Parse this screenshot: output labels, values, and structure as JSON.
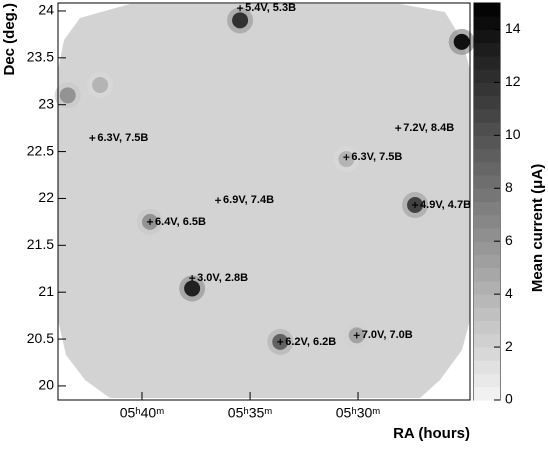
{
  "chart_data": {
    "type": "skymap",
    "xlabel": "RA (hours)",
    "ylabel": "Dec (deg.)",
    "colorbar_label": "Mean current (μA)",
    "xlim": [
      5.7315,
      5.4136
    ],
    "ylim": [
      19.85,
      24.085
    ],
    "xticks": [
      {
        "value": 5.6667,
        "label": "05ʰ40ᵐ"
      },
      {
        "value": 5.5833,
        "label": "05ʰ35ᵐ"
      },
      {
        "value": 5.5,
        "label": "05ʰ30ᵐ"
      }
    ],
    "yticks": [
      20,
      20.5,
      21,
      21.5,
      22,
      22.5,
      23,
      23.5,
      24
    ],
    "clim": [
      0,
      15
    ],
    "cticks": [
      0,
      2,
      4,
      6,
      8,
      10,
      12,
      14
    ],
    "stars": [
      {
        "label": "5.4V, 5.3B",
        "ra": 5.591,
        "dec": 24.03
      },
      {
        "label": "6.3V, 7.5B",
        "ra": 5.705,
        "dec": 22.645
      },
      {
        "label": "7.2V, 8.4B",
        "ra": 5.469,
        "dec": 22.75
      },
      {
        "label": "6.3V, 7.5B",
        "ra": 5.509,
        "dec": 22.44
      },
      {
        "label": "6.9V, 7.4B",
        "ra": 5.608,
        "dec": 21.98
      },
      {
        "label": "4.9V, 4.7B",
        "ra": 5.456,
        "dec": 21.93
      },
      {
        "label": "6.4V, 6.5B",
        "ra": 5.6605,
        "dec": 21.75
      },
      {
        "label": "3.0V, 2.8B",
        "ra": 5.628,
        "dec": 21.15
      },
      {
        "label": "6.2V, 6.2B",
        "ra": 5.56,
        "dec": 20.47
      },
      {
        "label": "7.0V, 7.0B",
        "ra": 5.501,
        "dec": 20.54
      }
    ],
    "spots": [
      {
        "ra": 5.591,
        "dec": 23.9,
        "value": 12
      },
      {
        "ra": 5.456,
        "dec": 21.93,
        "value": 11
      },
      {
        "ra": 5.6605,
        "dec": 21.75,
        "value": 6
      },
      {
        "ra": 5.628,
        "dec": 21.04,
        "value": 13
      },
      {
        "ra": 5.56,
        "dec": 20.47,
        "value": 9
      },
      {
        "ra": 5.501,
        "dec": 20.54,
        "value": 5
      },
      {
        "ra": 5.509,
        "dec": 22.42,
        "value": 4
      },
      {
        "ra": 5.724,
        "dec": 23.1,
        "value": 6
      },
      {
        "ra": 5.699,
        "dec": 23.21,
        "value": 4
      },
      {
        "ra": 5.42,
        "dec": 23.67,
        "value": 14
      }
    ]
  }
}
